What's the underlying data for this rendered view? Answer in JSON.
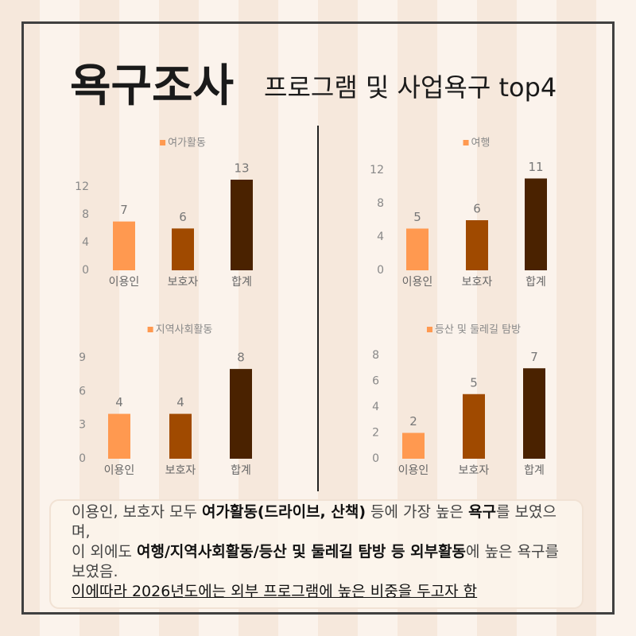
{
  "header": {
    "title": "욕구조사",
    "subtitle": "프로그램 및 사업욕구 top4"
  },
  "chart_data": [
    {
      "type": "bar",
      "series": [
        {
          "name": "여가활동",
          "color": "#ff9950"
        }
      ],
      "categories": [
        "이용인",
        "보호자",
        "합계"
      ],
      "values": [
        7,
        6,
        13
      ],
      "colors": [
        "#ff9950",
        "#a04a00",
        "#4a2200"
      ],
      "ylim": [
        0,
        13
      ],
      "yticks": [
        0,
        4,
        8,
        12
      ]
    },
    {
      "type": "bar",
      "series": [
        {
          "name": "여행",
          "color": "#ff9950"
        }
      ],
      "categories": [
        "이용인",
        "보호자",
        "합계"
      ],
      "values": [
        5,
        6,
        11
      ],
      "colors": [
        "#ff9950",
        "#a04a00",
        "#4a2200"
      ],
      "ylim": [
        0,
        12
      ],
      "yticks": [
        0,
        4,
        8,
        12
      ]
    },
    {
      "type": "bar",
      "series": [
        {
          "name": "지역사회활동",
          "color": "#ff9950"
        }
      ],
      "categories": [
        "이용인",
        "보호자",
        "합계"
      ],
      "values": [
        4,
        4,
        8
      ],
      "colors": [
        "#ff9950",
        "#a04a00",
        "#4a2200"
      ],
      "ylim": [
        0,
        9
      ],
      "yticks": [
        0,
        3,
        6,
        9
      ]
    },
    {
      "type": "bar",
      "series": [
        {
          "name": "등산 및 둘레길 탐방",
          "color": "#ff9950"
        }
      ],
      "categories": [
        "이용인",
        "보호자",
        "합계"
      ],
      "values": [
        2,
        5,
        7
      ],
      "colors": [
        "#ff9950",
        "#a04a00",
        "#4a2200"
      ],
      "ylim": [
        0,
        8
      ],
      "yticks": [
        0,
        2,
        4,
        6,
        8
      ]
    }
  ],
  "notes": [
    [
      {
        "text": "이용인, 보호자 모두 ",
        "style": "normal"
      },
      {
        "text": "여가활동(드라이브, 산책)",
        "style": "strong"
      },
      {
        "text": " 등에 가장 높은 ",
        "style": "normal"
      },
      {
        "text": "욕구",
        "style": "strong"
      },
      {
        "text": "를 보였으며,",
        "style": "normal"
      }
    ],
    [
      {
        "text": "이 외에도 ",
        "style": "normal"
      },
      {
        "text": "여행/지역사회활동/등산 및 둘레길 탐방 등 외부활동",
        "style": "strong"
      },
      {
        "text": "에 높은 욕구를 보였음.",
        "style": "normal"
      }
    ],
    [
      {
        "text": "이에따라 2026년도에는 외부 프로그램에 높은 비중을 두고자 함",
        "style": "u"
      }
    ]
  ]
}
